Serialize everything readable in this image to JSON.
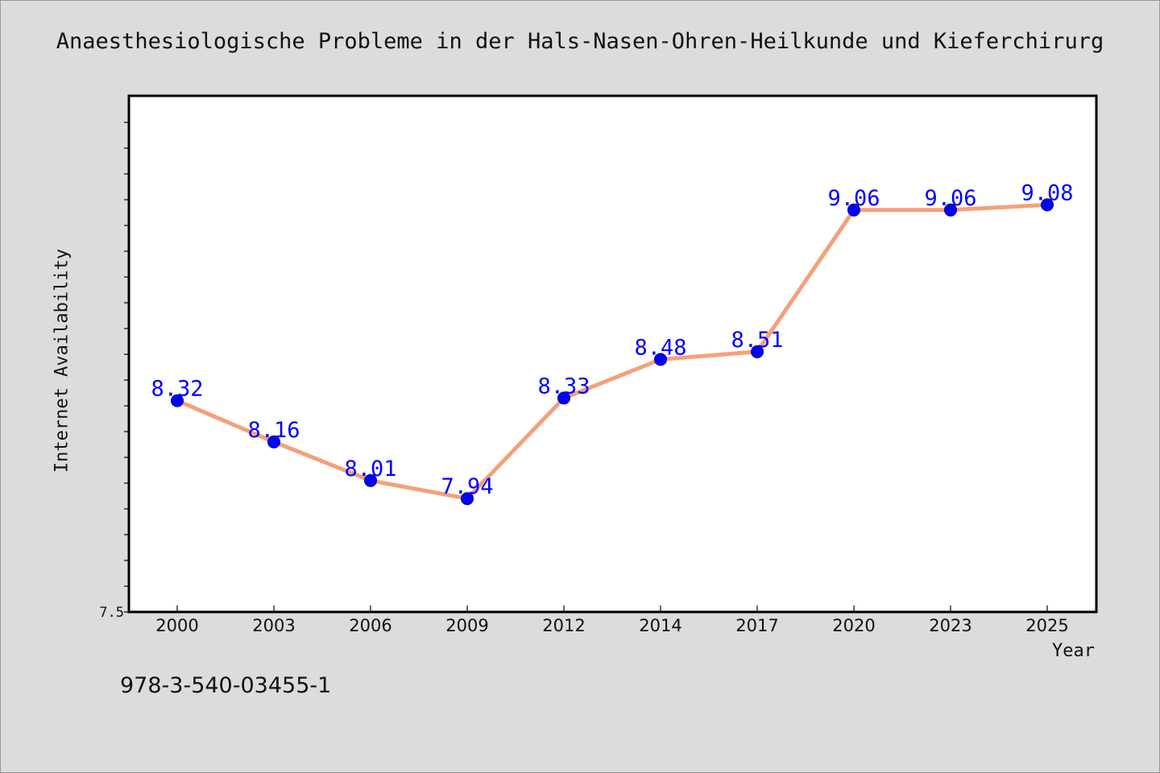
{
  "chart_data": {
    "type": "line",
    "title": "Anaesthesiologische Probleme in der Hals-Nasen-Ohren-Heilkunde und Kieferchirurg",
    "xlabel": "Year",
    "ylabel": "Internet Availability",
    "categories": [
      "2000",
      "2003",
      "2006",
      "2009",
      "2012",
      "2014",
      "2017",
      "2020",
      "2023",
      "2025"
    ],
    "series": [
      {
        "values": [
          8.32,
          8.16,
          8.01,
          7.94,
          8.33,
          8.48,
          8.51,
          9.06,
          9.06,
          9.08
        ],
        "line_color": "#f4a07a",
        "marker_color": "#0000ff",
        "label_color": "#0000ff"
      }
    ],
    "y_tick_labels": [
      "7.5"
    ],
    "ylim": [
      7.5,
      9.5
    ],
    "grid": false,
    "legend": "none"
  },
  "footer": {
    "text": "978-3-540-03455-1"
  },
  "colors": {
    "background": "#dcdcdc",
    "plot_background": "#ffffff",
    "axis": "#000000"
  }
}
